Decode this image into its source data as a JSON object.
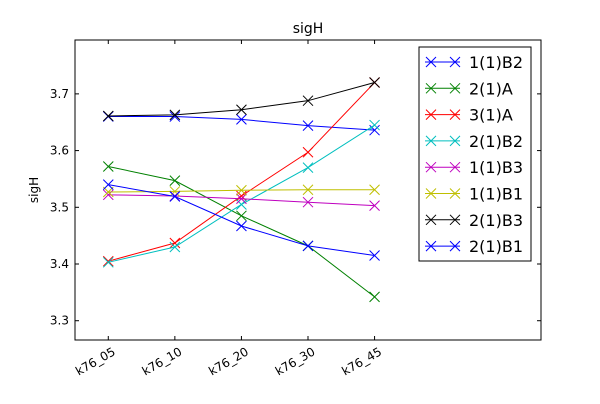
{
  "chart_data": {
    "type": "line",
    "title": "sigH",
    "xlabel": "",
    "ylabel": "sigH",
    "categories": [
      "k76_05",
      "k76_10",
      "k76_20",
      "k76_30",
      "k76_45"
    ],
    "xlim": [
      -0.5,
      6.5
    ],
    "ylim": [
      3.266,
      3.795
    ],
    "yticks": [
      3.3,
      3.4,
      3.5,
      3.6,
      3.7
    ],
    "ytick_labels": [
      "3.3",
      "3.4",
      "3.5",
      "3.6",
      "3.7"
    ],
    "grid": false,
    "legend_position": "top-right",
    "marker": "x",
    "series": [
      {
        "name": "1(1)B2",
        "color": "#0000ff",
        "values": [
          3.66,
          3.66,
          3.655,
          3.644,
          3.636
        ]
      },
      {
        "name": "2(1)A",
        "color": "#008000",
        "values": [
          3.572,
          3.547,
          3.485,
          3.432,
          3.342
        ]
      },
      {
        "name": "3(1)A",
        "color": "#ff0000",
        "values": [
          3.405,
          3.437,
          3.52,
          3.597,
          3.72
        ]
      },
      {
        "name": "2(1)B2",
        "color": "#00bfbf",
        "values": [
          3.403,
          3.43,
          3.505,
          3.57,
          3.645
        ]
      },
      {
        "name": "1(1)B3",
        "color": "#bf00bf",
        "values": [
          3.522,
          3.52,
          3.515,
          3.509,
          3.503
        ]
      },
      {
        "name": "1(1)B1",
        "color": "#bfbf00",
        "values": [
          3.527,
          3.528,
          3.53,
          3.531,
          3.531
        ]
      },
      {
        "name": "2(1)B3",
        "color": "#000000",
        "values": [
          3.661,
          3.663,
          3.672,
          3.688,
          3.72
        ]
      },
      {
        "name": "2(1)B1",
        "color": "#0000ff",
        "values": [
          3.54,
          3.519,
          3.467,
          3.432,
          3.415
        ]
      }
    ]
  }
}
